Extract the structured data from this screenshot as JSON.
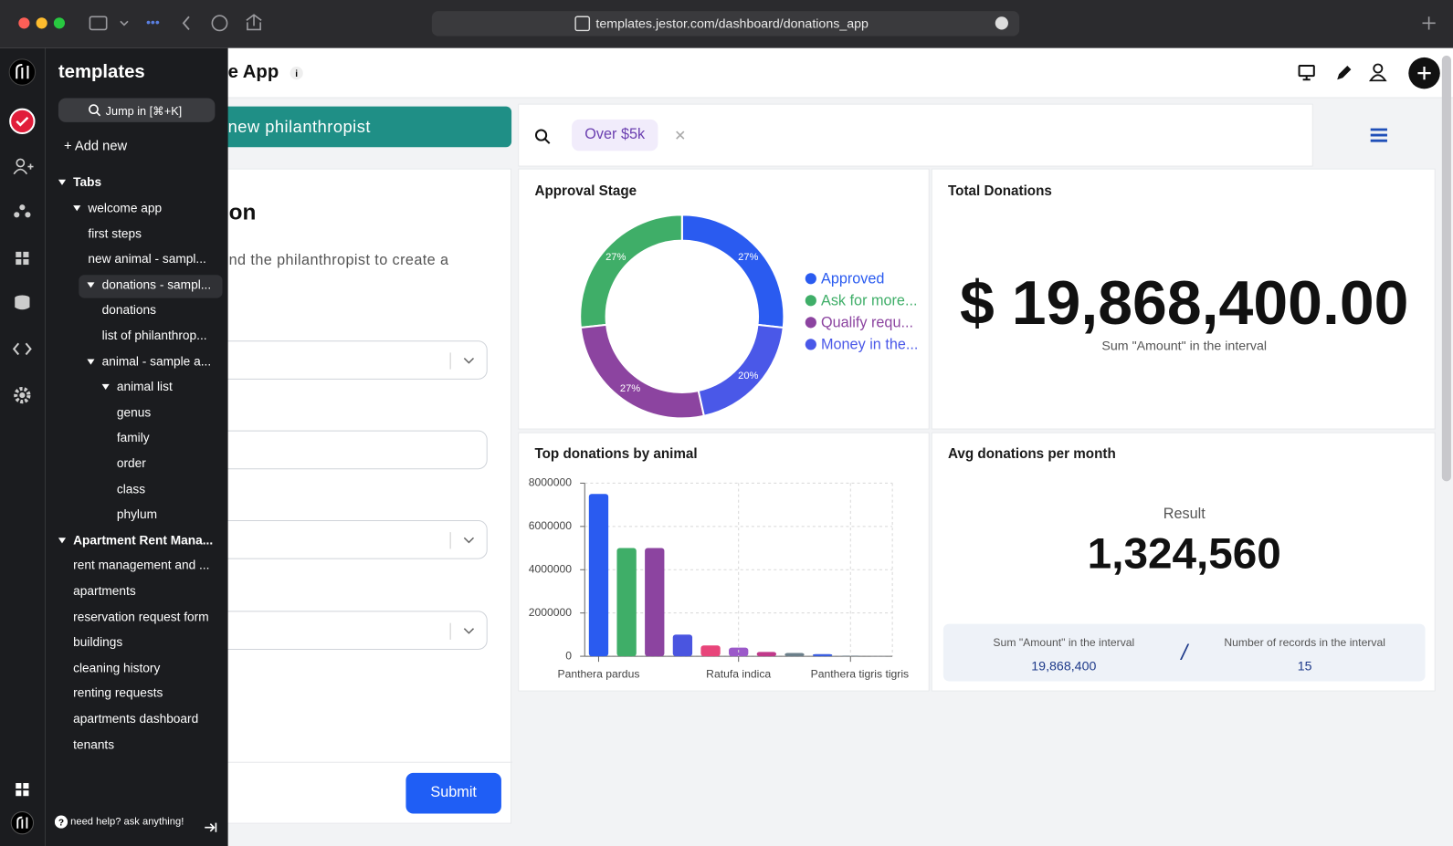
{
  "browser": {
    "url": "templates.jestor.com/dashboard/donations_app"
  },
  "sidebar": {
    "title": "templates",
    "search": "Jump in [⌘+K]",
    "add_new": "+ Add new",
    "items": [
      "Tabs",
      "welcome app",
      "first steps",
      "new animal - sampl...",
      "donations - sampl...",
      "donations",
      "list of philanthrop...",
      "animal - sample a...",
      "animal list",
      "genus",
      "family",
      "order",
      "class",
      "phylum",
      "Apartment Rent Mana...",
      "rent management and ...",
      "apartments",
      "reservation request form",
      "buildings",
      "cleaning history",
      "renting requests",
      "apartments dashboard",
      "tenants"
    ],
    "help": "need help? ask anything!"
  },
  "header": {
    "title": "e App"
  },
  "form": {
    "button": "new philanthropist",
    "heading": "on",
    "description": "nd the philanthropist to create a",
    "submit": "Submit"
  },
  "filter": {
    "chip": "Over $5k"
  },
  "total": {
    "title": "Total Donations",
    "value": "$ 19,868,400.00",
    "caption": "Sum \"Amount\" in the interval"
  },
  "avg": {
    "title": "Avg donations per month",
    "result_label": "Result",
    "result": "1,324,560",
    "left_label": "Sum \"Amount\" in the interval",
    "left_value": "19,868,400",
    "separator": "/",
    "right_label": "Number of records in the interval",
    "right_value": "15"
  },
  "chart_data": [
    {
      "type": "pie",
      "title": "Approval Stage",
      "categories": [
        "Approved",
        "Ask for more...",
        "Qualify requ...",
        "Money in the..."
      ],
      "values": [
        27,
        27,
        27,
        20
      ],
      "value_labels": [
        "27%",
        "27%",
        "27%",
        "20%"
      ],
      "colors": [
        "#2a5bf0",
        "#3fae68",
        "#8c44a0",
        "#4a58e8"
      ]
    },
    {
      "type": "bar",
      "title": "Top donations by animal",
      "categories": [
        "Panthera pardus",
        null,
        null,
        null,
        null,
        "Ratufa indica",
        null,
        null,
        null,
        "Panthera tigris tigris",
        null
      ],
      "values": [
        7500000,
        5000000,
        5000000,
        1000000,
        500000,
        400000,
        200000,
        150000,
        100000,
        30000,
        10000
      ],
      "colors": [
        "#2a5bf0",
        "#3fae68",
        "#8c44a0",
        "#4a55e0",
        "#e8457a",
        "#9b59c9",
        "#c0398a",
        "#6b7f8a",
        "#3a5ee0",
        "#7b8a94",
        "#9aa5ad"
      ],
      "ylim": [
        0,
        8000000
      ],
      "yticks": [
        0,
        2000000,
        4000000,
        6000000,
        8000000
      ],
      "grid": true
    }
  ]
}
